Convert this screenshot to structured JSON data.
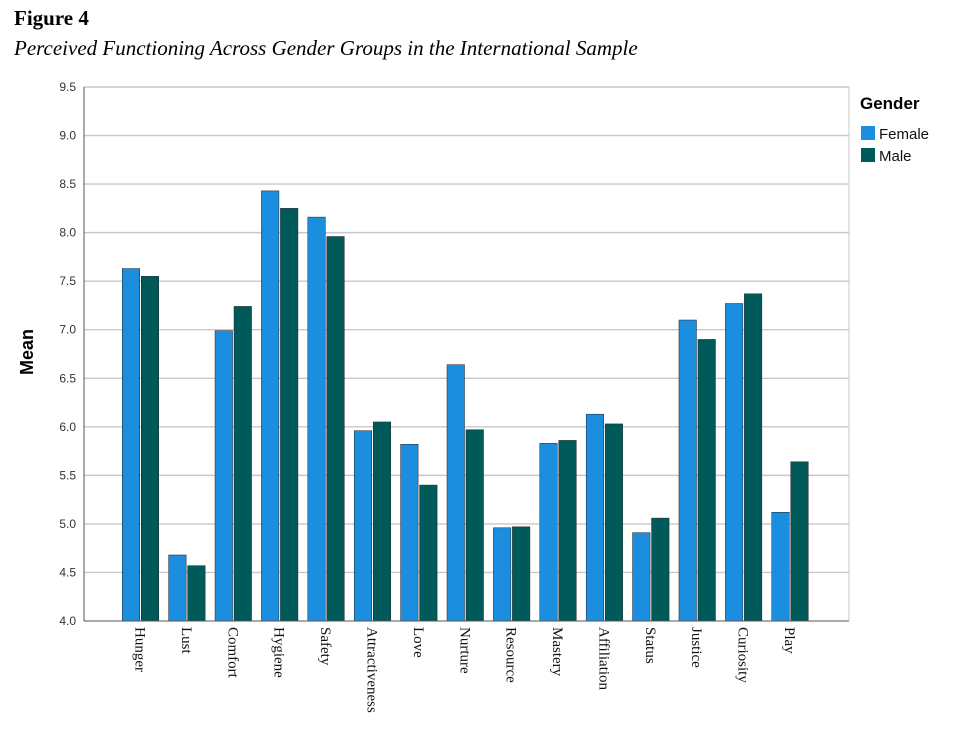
{
  "figure": {
    "label": "Figure 4",
    "caption": "Perceived Functioning Across Gender Groups in the International Sample"
  },
  "chart_data": {
    "type": "bar",
    "title": "Perceived Functioning Across Gender Groups in the International Sample",
    "xlabel": "",
    "ylabel": "Mean",
    "ylim": [
      4.0,
      9.5
    ],
    "yticks": [
      4.0,
      4.5,
      5.0,
      5.5,
      6.0,
      6.5,
      7.0,
      7.5,
      8.0,
      8.5,
      9.0,
      9.5
    ],
    "grid": true,
    "legend": {
      "title": "Gender",
      "placement": "right"
    },
    "categories": [
      "Hunger",
      "Lust",
      "Comfort",
      "Hygiene",
      "Safety",
      "Attractiveness",
      "Love",
      "Nurture",
      "Resource",
      "Mastery",
      "Affiliation",
      "Status",
      "Justice",
      "Curiosity",
      "Play"
    ],
    "series": [
      {
        "name": "Female",
        "color": "#1b8ee0",
        "values": [
          7.63,
          4.68,
          6.99,
          8.43,
          8.16,
          5.96,
          5.82,
          6.64,
          4.96,
          5.83,
          6.13,
          4.91,
          7.1,
          7.27,
          5.12
        ]
      },
      {
        "name": "Male",
        "color": "#005a5a",
        "values": [
          7.55,
          4.57,
          7.24,
          8.25,
          7.96,
          6.05,
          5.4,
          5.97,
          4.97,
          5.86,
          6.03,
          5.06,
          6.9,
          7.37,
          5.64
        ]
      }
    ]
  }
}
